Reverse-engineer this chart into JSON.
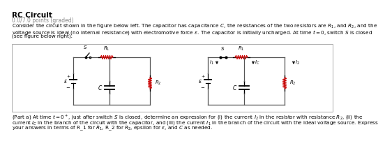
{
  "title": "RC Circuit",
  "subtitle": "0.0/7.0 points (graded)",
  "body_line1": "Consider the circuit shown in the figure below left. The capacitor has capacitance $C$, the resistances of the two resistors are $R_1$, and $R_2$, and the",
  "body_line2": "voltage source is ideal (no internal resistance) with electromotive force $\\varepsilon$. The capacitor is initially uncharged. At time $t = 0$, switch $S$ is closed",
  "body_line3": "(see figure below right).",
  "part_line1": "(Part a) At time $t = 0^+$, just after switch $S$ is closed, determine an expression for (i) the current $I_2$ in the resistor with resistance $R_2$, (ii) the",
  "part_line2": "current $I_C$ in the branch of the circuit with the capacitor, and (iii) the current $I_1$ in the branch of the circuit with the ideal voltage source. Express",
  "part_line3": "your answers in terms of R_1 for $R_1$, R_2 for $R_2$, epsilon for $\\varepsilon$, and $C$ as needed.",
  "background_color": "#ffffff",
  "text_color": "#000000",
  "subtitle_color": "#888888",
  "resistor_color": "#cc0000",
  "wire_color": "#555555",
  "title_fontsize": 7.5,
  "subtitle_fontsize": 5.5,
  "body_fontsize": 5.2,
  "part_fontsize": 5.2,
  "box_edge_color": "#aaaaaa"
}
